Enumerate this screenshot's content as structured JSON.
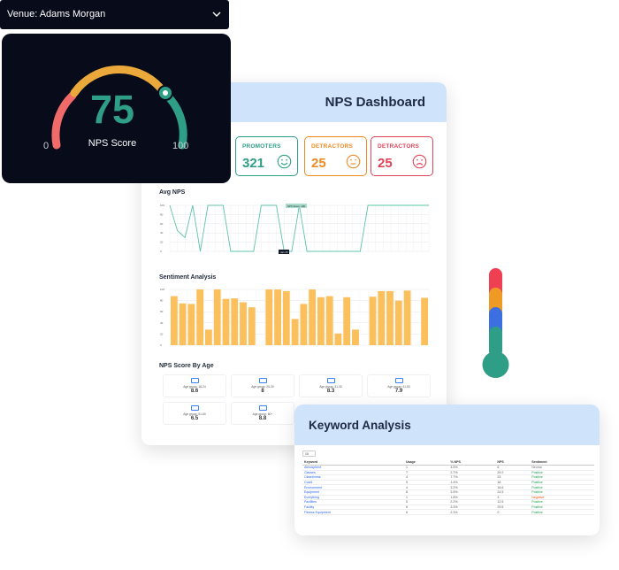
{
  "venue_select": {
    "label": "Venue: Adams Morgan"
  },
  "gauge": {
    "value": "75",
    "label": "NPS Score",
    "min": "0",
    "max": "100",
    "fraction": 0.75
  },
  "dashboard": {
    "title": "NPS Dashboard",
    "stats": [
      {
        "label": "PROMOTERS",
        "value": "321",
        "face": "smile-face-icon"
      },
      {
        "label": "DETRACTORS",
        "value": "25",
        "face": "neutral-face-icon"
      },
      {
        "label": "DETRACTORS",
        "value": "25",
        "face": "sad-face-icon"
      }
    ],
    "avg_title": "Avg NPS",
    "sentiment_title": "Sentiment Analysis",
    "age_title": "NPS Score By Age",
    "age_cards": [
      {
        "label": "Age group: 18-24",
        "value": "8.6"
      },
      {
        "label": "Age group: 25-30",
        "value": "8"
      },
      {
        "label": "Age group: 31-40",
        "value": "8.3"
      },
      {
        "label": "Age group: 41-50",
        "value": "7.9"
      },
      {
        "label": "Age group: 51-60",
        "value": "6.5"
      },
      {
        "label": "Age group: 60+",
        "value": "8.8"
      }
    ]
  },
  "chart_data": [
    {
      "type": "line",
      "title": "Avg NPS",
      "ylim": [
        0,
        100
      ],
      "yticks": [
        "0",
        "20",
        "40",
        "60",
        "80",
        "100"
      ],
      "values": [
        100,
        45,
        30,
        100,
        0,
        100,
        100,
        100,
        0,
        0,
        0,
        0,
        100,
        100,
        100,
        0,
        0,
        100,
        0,
        0,
        0,
        0,
        0,
        0,
        0,
        0,
        100,
        100,
        100,
        100,
        100,
        100,
        100,
        100,
        100
      ],
      "annotations": [
        "NPS Score: 100",
        "Jan 15"
      ],
      "grid": true,
      "color": "#5fc3a9"
    },
    {
      "type": "bar",
      "title": "Sentiment Analysis",
      "ylim": [
        0,
        100
      ],
      "yticks": [
        "0",
        "20",
        "40",
        "60",
        "80",
        "100"
      ],
      "values": [
        88,
        75,
        74,
        100,
        28,
        100,
        83,
        84,
        77,
        68,
        0,
        100,
        100,
        97,
        47,
        74,
        100,
        86,
        88,
        21,
        86,
        28,
        0,
        87,
        97,
        97,
        80,
        98,
        0,
        85
      ],
      "grid": true,
      "color": "#fbbf5c"
    }
  ],
  "keyword_analysis": {
    "title": "Keyword Analysis",
    "page_size": "10",
    "columns": [
      "Keyword",
      "Usage",
      "% NPS",
      "NPS",
      "Sentiment"
    ],
    "rows": [
      [
        "Atmosphere",
        "1",
        "4.5%",
        "6",
        "Neutral"
      ],
      [
        "Classes",
        "7",
        "2.7%",
        "29.2",
        "Positive"
      ],
      [
        "Cleanliness",
        "4",
        "7.7%",
        "23",
        "Positive"
      ],
      [
        "Covid",
        "5",
        "1.4%",
        "18",
        "Positive"
      ],
      [
        "Environment",
        "4",
        "3.2%",
        "16.6",
        "Positive"
      ],
      [
        "Equipment",
        "8",
        "3.5%",
        "24.5",
        "Positive"
      ],
      [
        "Everything",
        "1",
        "1.8%",
        "3",
        "Negative"
      ],
      [
        "Facilities",
        "5",
        "2.2%",
        "12.5",
        "Positive"
      ],
      [
        "Facility",
        "6",
        "3.3%",
        "29.5",
        "Positive"
      ],
      [
        "Fitness Equipment",
        "6",
        "2.3%",
        "0",
        "Positive"
      ]
    ]
  }
}
